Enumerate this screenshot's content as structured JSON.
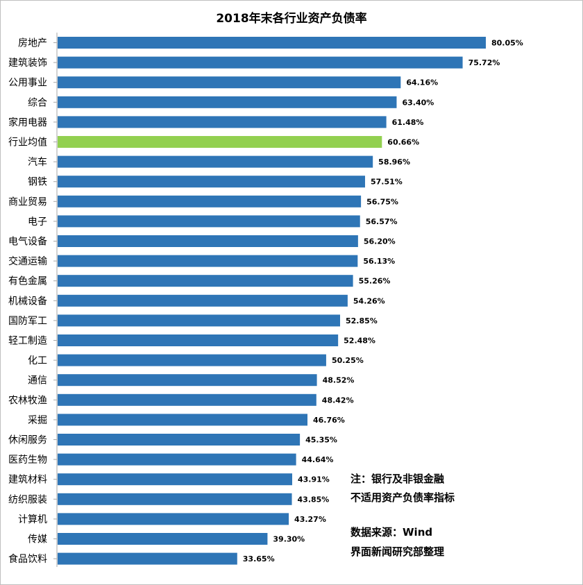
{
  "chart_data": {
    "type": "bar",
    "orientation": "horizontal",
    "title": "2018年末各行业资产负债率",
    "categories": [
      "房地产",
      "建筑装饰",
      "公用事业",
      "综合",
      "家用电器",
      "行业均值",
      "汽车",
      "钢铁",
      "商业贸易",
      "电子",
      "电气设备",
      "交通运输",
      "有色金属",
      "机械设备",
      "国防军工",
      "轻工制造",
      "化工",
      "通信",
      "农林牧渔",
      "采掘",
      "休闲服务",
      "医药生物",
      "建筑材料",
      "纺织服装",
      "计算机",
      "传媒",
      "食品饮料"
    ],
    "values": [
      80.05,
      75.72,
      64.16,
      63.4,
      61.48,
      60.66,
      58.96,
      57.51,
      56.75,
      56.57,
      56.2,
      56.13,
      55.26,
      54.26,
      52.85,
      52.48,
      50.25,
      48.52,
      48.42,
      46.76,
      45.35,
      44.64,
      43.91,
      43.85,
      43.27,
      39.3,
      33.65
    ],
    "value_labels": [
      "80.05%",
      "75.72%",
      "64.16%",
      "63.40%",
      "61.48%",
      "60.66%",
      "58.96%",
      "57.51%",
      "56.75%",
      "56.57%",
      "56.20%",
      "56.13%",
      "55.26%",
      "54.26%",
      "52.85%",
      "52.48%",
      "50.25%",
      "48.52%",
      "48.42%",
      "46.76%",
      "45.35%",
      "44.64%",
      "43.91%",
      "43.85%",
      "43.27%",
      "39.30%",
      "33.65%"
    ],
    "colors": {
      "default": "#2e75b6",
      "highlight": "#92d050"
    },
    "highlight_category": "行业均值",
    "grid": false,
    "legend": "none"
  },
  "notes": {
    "line1": "注：银行及非银金融",
    "line2": "不适用资产负债率指标",
    "line3": "数据来源：Wind",
    "line4": "界面新闻研究部整理"
  }
}
